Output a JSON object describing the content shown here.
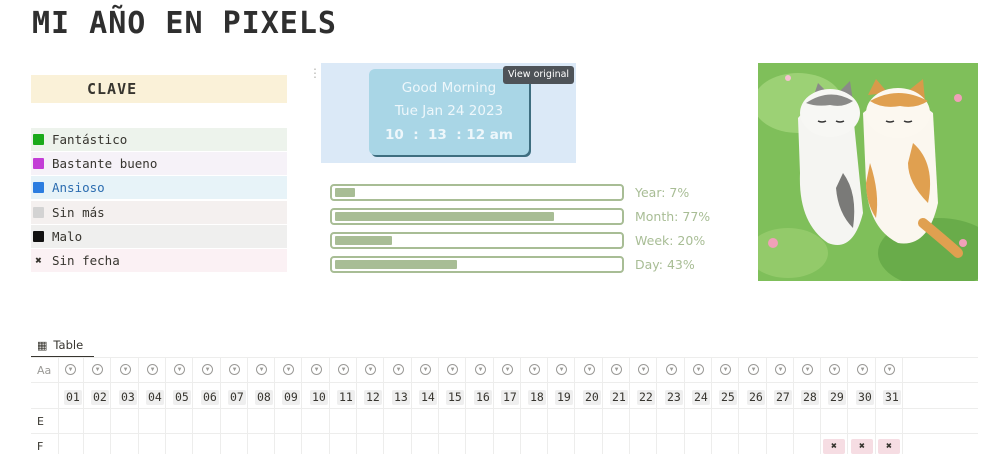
{
  "page": {
    "title": "MI AÑO EN PIXELS"
  },
  "legend": {
    "header": "CLAVE",
    "items": [
      {
        "label": "Fantástico",
        "swatch": "#1aaa1a",
        "bg": "#edf3ec",
        "icon": "green-square-icon"
      },
      {
        "label": "Bastante bueno",
        "swatch": "#c33ed6",
        "bg": "#f6f2f8",
        "icon": "purple-square-icon"
      },
      {
        "label": "Ansioso",
        "swatch": "#2b7de0",
        "bg": "#e7f3f8",
        "icon": "blue-square-icon",
        "color": "#2b6cb0"
      },
      {
        "label": "Sin más",
        "swatch": "#d3d3d3",
        "bg": "#f4f0ef",
        "icon": "grey-square-icon"
      },
      {
        "label": "Malo",
        "swatch": "#111111",
        "bg": "#efefee",
        "icon": "black-square-icon"
      },
      {
        "label": "Sin fecha",
        "swatch": "",
        "bg": "#fbf1f4",
        "icon": "x-mark-icon",
        "symbol": "✖"
      }
    ]
  },
  "clock": {
    "greeting": "Good Morning",
    "date": "Tue Jan 24 2023",
    "time": "10  :  13  : 12 am",
    "view_original": "View original"
  },
  "progress": [
    {
      "label": "Year: 7%",
      "value": 7
    },
    {
      "label": "Month: 77%",
      "value": 77
    },
    {
      "label": "Week: 20%",
      "value": 20
    },
    {
      "label": "Day: 43%",
      "value": 43
    }
  ],
  "table": {
    "tab_label": "Table",
    "title_col_icon": "Aa",
    "days": [
      "01",
      "02",
      "03",
      "04",
      "05",
      "06",
      "07",
      "08",
      "09",
      "10",
      "11",
      "12",
      "13",
      "14",
      "15",
      "16",
      "17",
      "18",
      "19",
      "20",
      "21",
      "22",
      "23",
      "24",
      "25",
      "26",
      "27",
      "28",
      "29",
      "30",
      "31"
    ],
    "rows": [
      {
        "label": "E",
        "marks": []
      },
      {
        "label": "F",
        "marks": [
          "✖",
          "✖",
          "✖"
        ]
      }
    ]
  }
}
